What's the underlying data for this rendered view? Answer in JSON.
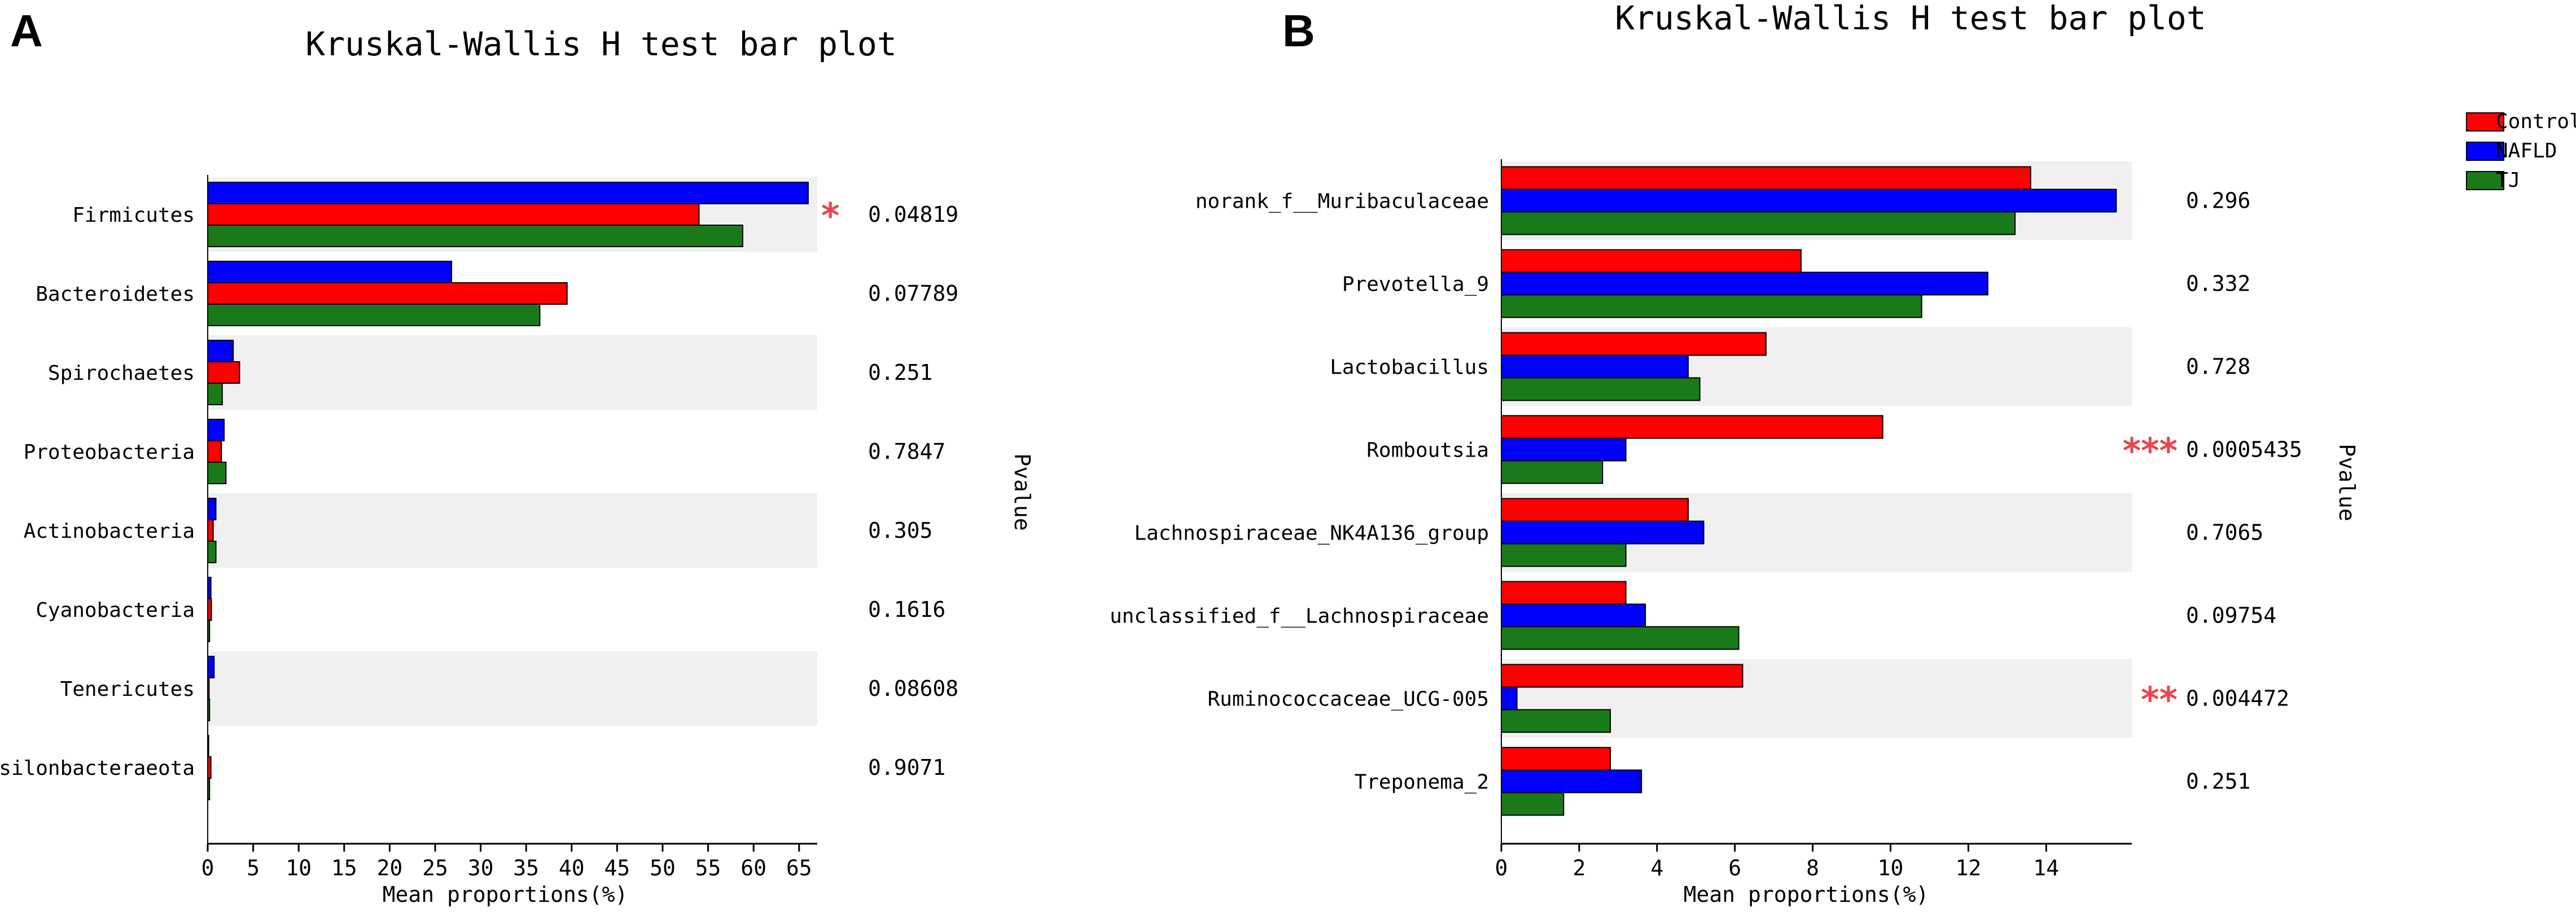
{
  "figure": {
    "series_names": [
      "Control",
      "NAFLD",
      "TJ"
    ],
    "series_colors": [
      "#ff0000",
      "#0000ff",
      "#1a7a1a"
    ],
    "band_color": "#f0f0f0"
  },
  "chart_data": [
    {
      "type": "bar",
      "panel_label": "A",
      "title": "Kruskal-Wallis H test bar plot",
      "xlabel": "Mean proportions(%)",
      "ylabel": "",
      "pvalue_label": "Pvalue",
      "xlim": [
        0,
        67
      ],
      "xticks": [
        0,
        5,
        10,
        15,
        20,
        25,
        30,
        35,
        40,
        45,
        50,
        55,
        60,
        65
      ],
      "series_order": [
        "NAFLD",
        "Control",
        "TJ"
      ],
      "categories": [
        "Firmicutes",
        "Bacteroidetes",
        "Spirochaetes",
        "Proteobacteria",
        "Actinobacteria",
        "Cyanobacteria",
        "Tenericutes",
        "Epsilonbacteraeota"
      ],
      "series": [
        {
          "name": "Control",
          "color": "#ff0000",
          "values": [
            54.0,
            39.5,
            3.5,
            1.5,
            0.6,
            0.4,
            0.15,
            0.35
          ]
        },
        {
          "name": "NAFLD",
          "color": "#0000ff",
          "values": [
            66.0,
            26.8,
            2.8,
            1.8,
            0.9,
            0.35,
            0.7,
            0.1
          ]
        },
        {
          "name": "TJ",
          "color": "#1a7a1a",
          "values": [
            58.8,
            36.5,
            1.6,
            2.0,
            0.9,
            0.2,
            0.2,
            0.2
          ]
        }
      ],
      "pvalues": [
        "0.04819",
        "0.07789",
        "0.251",
        "0.7847",
        "0.305",
        "0.1616",
        "0.08608",
        "0.9071"
      ],
      "significance": [
        "*",
        "",
        "",
        "",
        "",
        "",
        "",
        ""
      ]
    },
    {
      "type": "bar",
      "panel_label": "B",
      "title": "Kruskal-Wallis H test bar plot",
      "xlabel": "Mean proportions(%)",
      "ylabel": "",
      "pvalue_label": "Pvalue",
      "xlim": [
        0,
        16.2
      ],
      "xticks": [
        0,
        2,
        4,
        6,
        8,
        10,
        12,
        14
      ],
      "series_order": [
        "Control",
        "NAFLD",
        "TJ"
      ],
      "legend": [
        "Control",
        "NAFLD",
        "TJ"
      ],
      "legend_position": "top-right",
      "categories": [
        "norank_f__Muribaculaceae",
        "Prevotella_9",
        "Lactobacillus",
        "Romboutsia",
        "Lachnospiraceae_NK4A136_group",
        "unclassified_f__Lachnospiraceae",
        "Ruminococcaceae_UCG-005",
        "Treponema_2"
      ],
      "series": [
        {
          "name": "Control",
          "color": "#ff0000",
          "values": [
            13.6,
            7.7,
            6.8,
            9.8,
            4.8,
            3.2,
            6.2,
            2.8
          ]
        },
        {
          "name": "NAFLD",
          "color": "#0000ff",
          "values": [
            15.8,
            12.5,
            4.8,
            3.2,
            5.2,
            3.7,
            0.4,
            3.6
          ]
        },
        {
          "name": "TJ",
          "color": "#1a7a1a",
          "values": [
            13.2,
            10.8,
            5.1,
            2.6,
            3.2,
            6.1,
            2.8,
            1.6
          ]
        }
      ],
      "pvalues": [
        "0.296",
        "0.332",
        "0.728",
        "0.0005435",
        "0.7065",
        "0.09754",
        "0.004472",
        "0.251"
      ],
      "significance": [
        "",
        "",
        "",
        "***",
        "",
        "",
        "**",
        ""
      ]
    }
  ]
}
